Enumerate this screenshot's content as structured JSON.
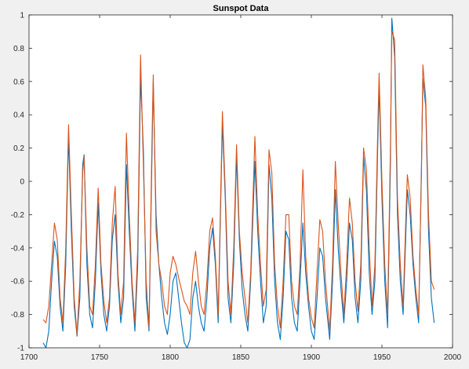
{
  "chart_data": {
    "type": "line",
    "title": "Sunspot Data",
    "xlabel": "",
    "ylabel": "",
    "xlim": [
      1700,
      2000
    ],
    "ylim": [
      -1,
      1
    ],
    "x_ticks": [
      "1700",
      "1750",
      "1800",
      "1850",
      "1900",
      "1950",
      "2000"
    ],
    "y_ticks": [
      "-1",
      "-0.8",
      "-0.6",
      "-0.4",
      "-0.2",
      "0",
      "0.2",
      "0.4",
      "0.6",
      "0.8",
      "1"
    ],
    "grid": false,
    "legend": "none",
    "series": [
      {
        "color": "#0072BD",
        "points": [
          [
            1710,
            -0.97
          ],
          [
            1712,
            -1.0
          ],
          [
            1714,
            -0.9
          ],
          [
            1716,
            -0.6
          ],
          [
            1718,
            -0.36
          ],
          [
            1720,
            -0.45
          ],
          [
            1722,
            -0.75
          ],
          [
            1724,
            -0.9
          ],
          [
            1726,
            -0.5
          ],
          [
            1728,
            0.27
          ],
          [
            1730,
            -0.3
          ],
          [
            1732,
            -0.75
          ],
          [
            1734,
            -0.93
          ],
          [
            1736,
            -0.7
          ],
          [
            1738,
            0.1
          ],
          [
            1739,
            0.16
          ],
          [
            1741,
            -0.5
          ],
          [
            1743,
            -0.8
          ],
          [
            1745,
            -0.88
          ],
          [
            1747,
            -0.6
          ],
          [
            1749,
            -0.13
          ],
          [
            1751,
            -0.55
          ],
          [
            1753,
            -0.8
          ],
          [
            1755,
            -0.9
          ],
          [
            1757,
            -0.75
          ],
          [
            1759,
            -0.35
          ],
          [
            1761,
            -0.2
          ],
          [
            1763,
            -0.6
          ],
          [
            1765,
            -0.85
          ],
          [
            1767,
            -0.7
          ],
          [
            1769,
            0.1
          ],
          [
            1771,
            -0.3
          ],
          [
            1773,
            -0.65
          ],
          [
            1775,
            -0.9
          ],
          [
            1777,
            -0.5
          ],
          [
            1779,
            0.62
          ],
          [
            1781,
            0.2
          ],
          [
            1783,
            -0.7
          ],
          [
            1785,
            -0.9
          ],
          [
            1787,
            0.1
          ],
          [
            1788,
            0.6
          ],
          [
            1790,
            -0.2
          ],
          [
            1792,
            -0.5
          ],
          [
            1794,
            -0.7
          ],
          [
            1796,
            -0.85
          ],
          [
            1798,
            -0.92
          ],
          [
            1800,
            -0.8
          ],
          [
            1802,
            -0.6
          ],
          [
            1804,
            -0.55
          ],
          [
            1806,
            -0.7
          ],
          [
            1808,
            -0.85
          ],
          [
            1810,
            -0.97
          ],
          [
            1812,
            -1.0
          ],
          [
            1814,
            -0.95
          ],
          [
            1816,
            -0.7
          ],
          [
            1818,
            -0.6
          ],
          [
            1820,
            -0.75
          ],
          [
            1822,
            -0.85
          ],
          [
            1824,
            -0.9
          ],
          [
            1826,
            -0.7
          ],
          [
            1828,
            -0.4
          ],
          [
            1830,
            -0.28
          ],
          [
            1832,
            -0.5
          ],
          [
            1834,
            -0.85
          ],
          [
            1837,
            0.35
          ],
          [
            1839,
            -0.1
          ],
          [
            1841,
            -0.7
          ],
          [
            1843,
            -0.85
          ],
          [
            1845,
            -0.5
          ],
          [
            1847,
            0.15
          ],
          [
            1849,
            -0.35
          ],
          [
            1851,
            -0.65
          ],
          [
            1853,
            -0.8
          ],
          [
            1855,
            -0.9
          ],
          [
            1857,
            -0.6
          ],
          [
            1860,
            0.12
          ],
          [
            1862,
            -0.3
          ],
          [
            1864,
            -0.6
          ],
          [
            1866,
            -0.85
          ],
          [
            1868,
            -0.75
          ],
          [
            1870,
            0.1
          ],
          [
            1872,
            -0.1
          ],
          [
            1874,
            -0.6
          ],
          [
            1876,
            -0.85
          ],
          [
            1878,
            -0.95
          ],
          [
            1880,
            -0.7
          ],
          [
            1882,
            -0.3
          ],
          [
            1884,
            -0.35
          ],
          [
            1886,
            -0.7
          ],
          [
            1888,
            -0.85
          ],
          [
            1890,
            -0.9
          ],
          [
            1892,
            -0.6
          ],
          [
            1894,
            -0.25
          ],
          [
            1896,
            -0.55
          ],
          [
            1898,
            -0.75
          ],
          [
            1900,
            -0.9
          ],
          [
            1902,
            -0.95
          ],
          [
            1904,
            -0.7
          ],
          [
            1906,
            -0.4
          ],
          [
            1908,
            -0.45
          ],
          [
            1910,
            -0.7
          ],
          [
            1913,
            -0.95
          ],
          [
            1915,
            -0.6
          ],
          [
            1917,
            -0.05
          ],
          [
            1919,
            -0.4
          ],
          [
            1921,
            -0.65
          ],
          [
            1923,
            -0.85
          ],
          [
            1925,
            -0.6
          ],
          [
            1927,
            -0.25
          ],
          [
            1929,
            -0.35
          ],
          [
            1931,
            -0.7
          ],
          [
            1933,
            -0.85
          ],
          [
            1935,
            -0.6
          ],
          [
            1937,
            0.15
          ],
          [
            1939,
            -0.05
          ],
          [
            1941,
            -0.55
          ],
          [
            1943,
            -0.8
          ],
          [
            1945,
            -0.6
          ],
          [
            1947,
            0.2
          ],
          [
            1948,
            0.57
          ],
          [
            1950,
            -0.1
          ],
          [
            1952,
            -0.6
          ],
          [
            1954,
            -0.88
          ],
          [
            1956,
            0.1
          ],
          [
            1957,
            0.98
          ],
          [
            1959,
            0.75
          ],
          [
            1961,
            -0.2
          ],
          [
            1963,
            -0.6
          ],
          [
            1965,
            -0.8
          ],
          [
            1967,
            -0.3
          ],
          [
            1968,
            -0.05
          ],
          [
            1970,
            -0.2
          ],
          [
            1972,
            -0.5
          ],
          [
            1974,
            -0.7
          ],
          [
            1976,
            -0.85
          ],
          [
            1978,
            0.1
          ],
          [
            1979,
            0.62
          ],
          [
            1981,
            0.45
          ],
          [
            1983,
            -0.3
          ],
          [
            1985,
            -0.7
          ],
          [
            1987,
            -0.85
          ]
        ]
      },
      {
        "color": "#D95319",
        "points": [
          [
            1710,
            -0.83
          ],
          [
            1712,
            -0.85
          ],
          [
            1714,
            -0.75
          ],
          [
            1716,
            -0.5
          ],
          [
            1718,
            -0.25
          ],
          [
            1720,
            -0.35
          ],
          [
            1722,
            -0.7
          ],
          [
            1724,
            -0.85
          ],
          [
            1726,
            -0.4
          ],
          [
            1728,
            0.34
          ],
          [
            1730,
            -0.2
          ],
          [
            1732,
            -0.7
          ],
          [
            1734,
            -0.92
          ],
          [
            1736,
            -0.6
          ],
          [
            1738,
            0.05
          ],
          [
            1739,
            0.15
          ],
          [
            1741,
            -0.4
          ],
          [
            1743,
            -0.75
          ],
          [
            1745,
            -0.8
          ],
          [
            1747,
            -0.5
          ],
          [
            1749,
            -0.04
          ],
          [
            1751,
            -0.5
          ],
          [
            1753,
            -0.72
          ],
          [
            1755,
            -0.85
          ],
          [
            1757,
            -0.7
          ],
          [
            1759,
            -0.25
          ],
          [
            1761,
            -0.03
          ],
          [
            1763,
            -0.55
          ],
          [
            1765,
            -0.8
          ],
          [
            1767,
            -0.6
          ],
          [
            1769,
            0.29
          ],
          [
            1771,
            -0.2
          ],
          [
            1773,
            -0.6
          ],
          [
            1775,
            -0.85
          ],
          [
            1777,
            -0.4
          ],
          [
            1779,
            0.76
          ],
          [
            1781,
            0.1
          ],
          [
            1783,
            -0.6
          ],
          [
            1785,
            -0.88
          ],
          [
            1787,
            0.2
          ],
          [
            1788,
            0.64
          ],
          [
            1790,
            -0.3
          ],
          [
            1792,
            -0.5
          ],
          [
            1794,
            -0.6
          ],
          [
            1796,
            -0.75
          ],
          [
            1798,
            -0.8
          ],
          [
            1800,
            -0.55
          ],
          [
            1802,
            -0.45
          ],
          [
            1804,
            -0.5
          ],
          [
            1806,
            -0.58
          ],
          [
            1808,
            -0.65
          ],
          [
            1810,
            -0.72
          ],
          [
            1812,
            -0.75
          ],
          [
            1814,
            -0.8
          ],
          [
            1816,
            -0.55
          ],
          [
            1818,
            -0.42
          ],
          [
            1820,
            -0.6
          ],
          [
            1822,
            -0.75
          ],
          [
            1824,
            -0.8
          ],
          [
            1826,
            -0.6
          ],
          [
            1828,
            -0.3
          ],
          [
            1830,
            -0.22
          ],
          [
            1832,
            -0.45
          ],
          [
            1834,
            -0.8
          ],
          [
            1837,
            0.42
          ],
          [
            1839,
            -0.05
          ],
          [
            1841,
            -0.6
          ],
          [
            1843,
            -0.8
          ],
          [
            1845,
            -0.4
          ],
          [
            1847,
            0.22
          ],
          [
            1849,
            -0.3
          ],
          [
            1851,
            -0.55
          ],
          [
            1853,
            -0.7
          ],
          [
            1855,
            -0.85
          ],
          [
            1857,
            -0.55
          ],
          [
            1860,
            0.27
          ],
          [
            1862,
            -0.2
          ],
          [
            1864,
            -0.5
          ],
          [
            1866,
            -0.75
          ],
          [
            1868,
            -0.65
          ],
          [
            1870,
            0.19
          ],
          [
            1872,
            0.05
          ],
          [
            1874,
            -0.5
          ],
          [
            1876,
            -0.75
          ],
          [
            1878,
            -0.88
          ],
          [
            1880,
            -0.6
          ],
          [
            1882,
            -0.2
          ],
          [
            1884,
            -0.2
          ],
          [
            1886,
            -0.6
          ],
          [
            1888,
            -0.75
          ],
          [
            1890,
            -0.8
          ],
          [
            1892,
            -0.5
          ],
          [
            1894,
            0.07
          ],
          [
            1896,
            -0.45
          ],
          [
            1898,
            -0.7
          ],
          [
            1900,
            -0.82
          ],
          [
            1902,
            -0.88
          ],
          [
            1904,
            -0.55
          ],
          [
            1906,
            -0.23
          ],
          [
            1908,
            -0.3
          ],
          [
            1910,
            -0.6
          ],
          [
            1913,
            -0.9
          ],
          [
            1915,
            -0.5
          ],
          [
            1917,
            0.12
          ],
          [
            1919,
            -0.25
          ],
          [
            1921,
            -0.55
          ],
          [
            1923,
            -0.8
          ],
          [
            1925,
            -0.5
          ],
          [
            1927,
            -0.1
          ],
          [
            1929,
            -0.25
          ],
          [
            1931,
            -0.6
          ],
          [
            1933,
            -0.78
          ],
          [
            1935,
            -0.5
          ],
          [
            1937,
            0.2
          ],
          [
            1939,
            0.07
          ],
          [
            1941,
            -0.4
          ],
          [
            1943,
            -0.75
          ],
          [
            1945,
            -0.5
          ],
          [
            1947,
            0.3
          ],
          [
            1948,
            0.65
          ],
          [
            1950,
            0.0
          ],
          [
            1952,
            -0.5
          ],
          [
            1954,
            -0.8
          ],
          [
            1956,
            0.2
          ],
          [
            1957,
            0.9
          ],
          [
            1959,
            0.85
          ],
          [
            1961,
            -0.1
          ],
          [
            1963,
            -0.5
          ],
          [
            1965,
            -0.75
          ],
          [
            1967,
            -0.2
          ],
          [
            1968,
            0.04
          ],
          [
            1970,
            -0.1
          ],
          [
            1972,
            -0.45
          ],
          [
            1974,
            -0.65
          ],
          [
            1976,
            -0.8
          ],
          [
            1978,
            0.05
          ],
          [
            1979,
            0.7
          ],
          [
            1981,
            0.5
          ],
          [
            1983,
            -0.2
          ],
          [
            1985,
            -0.6
          ],
          [
            1987,
            -0.65
          ]
        ]
      }
    ]
  }
}
